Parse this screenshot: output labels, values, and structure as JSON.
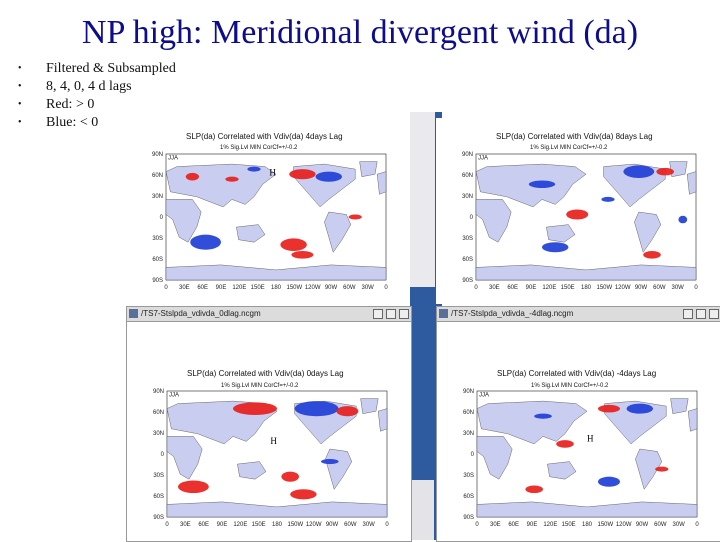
{
  "slide": {
    "title": "NP high: Meridional divergent wind (da)",
    "bullets": [
      "Filtered & Subsampled",
      "8, 4, 0, 4 d lags",
      "Red: > 0",
      "Blue: < 0"
    ]
  },
  "windows": [
    {
      "titlebar": "",
      "plot_title": "SLP(da) Correlated with Vdiv(da) 4days Lag",
      "subtitle": "1% Sig.Lvl MIN CorCf=+/-0.2",
      "season": "JJA",
      "high_label": "H"
    },
    {
      "titlebar": "",
      "plot_title": "SLP(da) Correlated with Vdiv(da) 8days Lag",
      "subtitle": "1% Sig.Lvl MIN CorCf=+/-0.2",
      "season": "JJA",
      "high_label": ""
    },
    {
      "titlebar": "/TS7-Stslpda_vdivda_0dlag.ncgm",
      "plot_title": "SLP(da) Correlated with Vdiv(da) 0days Lag",
      "subtitle": "1% Sig.Lvl MIN CorCf=+/-0.2",
      "season": "JJA",
      "high_label": "H"
    },
    {
      "titlebar": "/TS7-Stslpda_vdivda_-4dlag.ncgm",
      "plot_title": "SLP(da) Correlated with Vdiv(da) -4days Lag",
      "subtitle": "1% Sig.Lvl MIN CorCf=+/-0.2",
      "season": "JJA",
      "high_label": "H"
    }
  ],
  "axes": {
    "lat_ticks": [
      "90N",
      "60N",
      "30N",
      "0",
      "30S",
      "60S",
      "90S"
    ],
    "lon_ticks": [
      "0",
      "30E",
      "60E",
      "90E",
      "120E",
      "150E",
      "180",
      "150W",
      "120W",
      "90W",
      "60W",
      "30W",
      "0"
    ]
  },
  "colors": {
    "land": "#c9cdf0",
    "positive": "#e8201c",
    "negative": "#1f3fd6",
    "ocean": "#ffffff"
  }
}
